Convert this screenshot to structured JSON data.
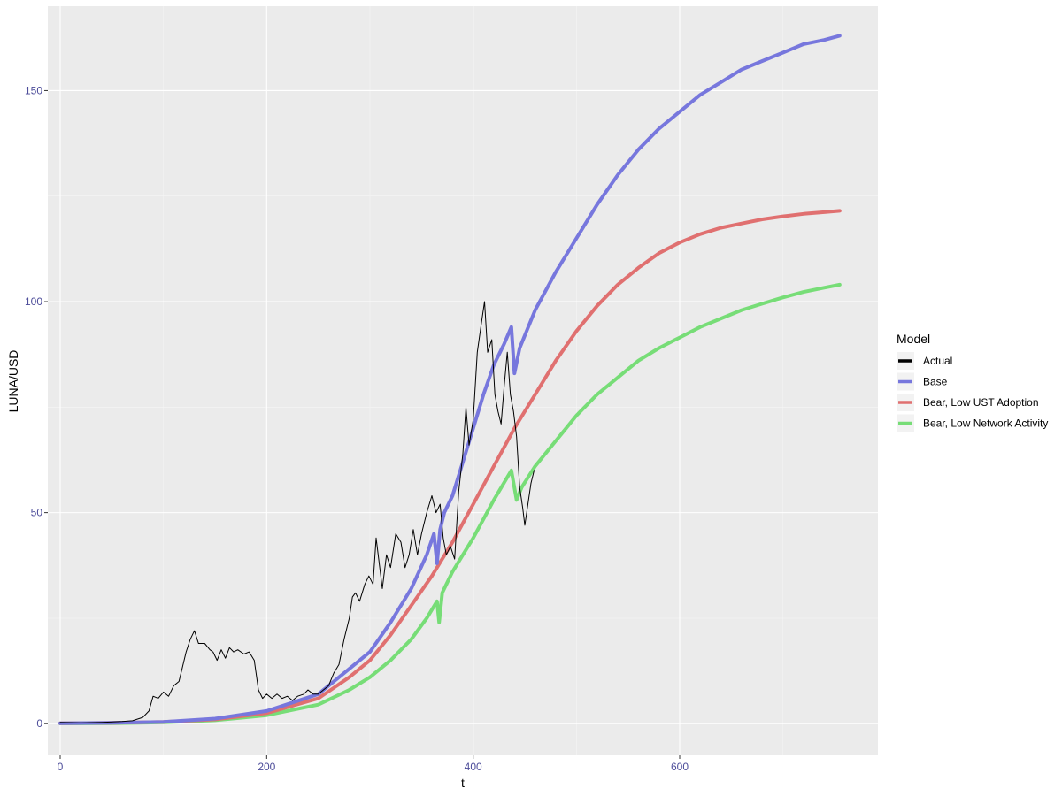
{
  "chart_data": {
    "type": "line",
    "title": "",
    "xlabel": "t",
    "ylabel": "LUNA/USD",
    "xlim": [
      -12,
      792
    ],
    "ylim": [
      -7.5,
      170
    ],
    "x_ticks": [
      0,
      200,
      400,
      600
    ],
    "x_tick_labels": [
      "0",
      "200",
      "400",
      "600"
    ],
    "y_ticks": [
      0,
      50,
      100,
      150
    ],
    "y_tick_labels": [
      "0",
      "50",
      "100",
      "150"
    ],
    "grid": true,
    "legend": {
      "title": "Model",
      "placement": "right"
    },
    "series": [
      {
        "name": "Actual",
        "color": "#000000",
        "linewidth": "thin",
        "points": [
          [
            0,
            0.3
          ],
          [
            20,
            0.2
          ],
          [
            40,
            0.3
          ],
          [
            60,
            0.5
          ],
          [
            70,
            0.7
          ],
          [
            80,
            1.5
          ],
          [
            86,
            3
          ],
          [
            90,
            6.5
          ],
          [
            95,
            6
          ],
          [
            100,
            7.5
          ],
          [
            105,
            6.5
          ],
          [
            110,
            9
          ],
          [
            115,
            10
          ],
          [
            118,
            13
          ],
          [
            122,
            17
          ],
          [
            126,
            20
          ],
          [
            130,
            22
          ],
          [
            134,
            19
          ],
          [
            140,
            19
          ],
          [
            145,
            17.5
          ],
          [
            148,
            17
          ],
          [
            152,
            15
          ],
          [
            156,
            17.5
          ],
          [
            160,
            15.5
          ],
          [
            164,
            18
          ],
          [
            168,
            17
          ],
          [
            172,
            17.5
          ],
          [
            178,
            16.5
          ],
          [
            183,
            17
          ],
          [
            188,
            15
          ],
          [
            192,
            8
          ],
          [
            196,
            6
          ],
          [
            200,
            7
          ],
          [
            205,
            6
          ],
          [
            210,
            7
          ],
          [
            215,
            6
          ],
          [
            220,
            6.5
          ],
          [
            225,
            5.5
          ],
          [
            230,
            6.5
          ],
          [
            236,
            7
          ],
          [
            240,
            8
          ],
          [
            245,
            7
          ],
          [
            250,
            7
          ],
          [
            255,
            8
          ],
          [
            260,
            9
          ],
          [
            265,
            12
          ],
          [
            270,
            14
          ],
          [
            275,
            20
          ],
          [
            280,
            25
          ],
          [
            283,
            30
          ],
          [
            286,
            31
          ],
          [
            290,
            29
          ],
          [
            295,
            33
          ],
          [
            299,
            35
          ],
          [
            303,
            33
          ],
          [
            306,
            44
          ],
          [
            309,
            38
          ],
          [
            312,
            32
          ],
          [
            316,
            40
          ],
          [
            320,
            37
          ],
          [
            325,
            45
          ],
          [
            330,
            43
          ],
          [
            334,
            37
          ],
          [
            338,
            40
          ],
          [
            342,
            46
          ],
          [
            346,
            40
          ],
          [
            350,
            45
          ],
          [
            355,
            50
          ],
          [
            360,
            54
          ],
          [
            364,
            50
          ],
          [
            368,
            52
          ],
          [
            371,
            44
          ],
          [
            374,
            40
          ],
          [
            378,
            42
          ],
          [
            382,
            39
          ],
          [
            386,
            55
          ],
          [
            390,
            64
          ],
          [
            393,
            75
          ],
          [
            396,
            66
          ],
          [
            400,
            72
          ],
          [
            404,
            88
          ],
          [
            408,
            95
          ],
          [
            411,
            100
          ],
          [
            414,
            88
          ],
          [
            418,
            91
          ],
          [
            421,
            78
          ],
          [
            424,
            74
          ],
          [
            427,
            71
          ],
          [
            430,
            80
          ],
          [
            433,
            88
          ],
          [
            436,
            78
          ],
          [
            439,
            74
          ],
          [
            442,
            68
          ],
          [
            445,
            56
          ],
          [
            448,
            51
          ],
          [
            450,
            47
          ],
          [
            453,
            52
          ],
          [
            456,
            57
          ],
          [
            459,
            60
          ]
        ]
      },
      {
        "name": "Base",
        "color": "#7777dd",
        "linewidth": "thick",
        "points": [
          [
            0,
            0.1
          ],
          [
            50,
            0.2
          ],
          [
            100,
            0.4
          ],
          [
            150,
            1.2
          ],
          [
            200,
            3
          ],
          [
            250,
            7
          ],
          [
            280,
            13
          ],
          [
            300,
            17
          ],
          [
            320,
            24
          ],
          [
            340,
            32
          ],
          [
            355,
            40
          ],
          [
            362,
            45
          ],
          [
            365,
            38
          ],
          [
            368,
            46
          ],
          [
            372,
            50
          ],
          [
            380,
            54
          ],
          [
            390,
            62
          ],
          [
            400,
            70
          ],
          [
            410,
            78
          ],
          [
            420,
            85
          ],
          [
            430,
            90
          ],
          [
            437,
            94
          ],
          [
            440,
            83
          ],
          [
            445,
            89
          ],
          [
            460,
            98
          ],
          [
            480,
            107
          ],
          [
            500,
            115
          ],
          [
            520,
            123
          ],
          [
            540,
            130
          ],
          [
            560,
            136
          ],
          [
            580,
            141
          ],
          [
            600,
            145
          ],
          [
            620,
            149
          ],
          [
            640,
            152
          ],
          [
            660,
            155
          ],
          [
            680,
            157
          ],
          [
            700,
            159
          ],
          [
            720,
            161
          ],
          [
            740,
            162
          ],
          [
            755,
            163
          ]
        ]
      },
      {
        "name": "Bear, Low UST Adoption",
        "color": "#e07070",
        "linewidth": "thick",
        "points": [
          [
            0,
            0.1
          ],
          [
            50,
            0.2
          ],
          [
            100,
            0.4
          ],
          [
            150,
            1
          ],
          [
            200,
            2.5
          ],
          [
            250,
            6
          ],
          [
            280,
            11
          ],
          [
            300,
            15
          ],
          [
            320,
            21
          ],
          [
            340,
            28
          ],
          [
            360,
            35
          ],
          [
            380,
            43
          ],
          [
            400,
            52
          ],
          [
            420,
            61
          ],
          [
            440,
            70
          ],
          [
            460,
            78
          ],
          [
            480,
            86
          ],
          [
            500,
            93
          ],
          [
            520,
            99
          ],
          [
            540,
            104
          ],
          [
            560,
            108
          ],
          [
            580,
            111.5
          ],
          [
            600,
            114
          ],
          [
            620,
            116
          ],
          [
            640,
            117.5
          ],
          [
            660,
            118.5
          ],
          [
            680,
            119.5
          ],
          [
            700,
            120.2
          ],
          [
            720,
            120.8
          ],
          [
            740,
            121.2
          ],
          [
            755,
            121.5
          ]
        ]
      },
      {
        "name": "Bear, Low Network Activity",
        "color": "#77dd77",
        "linewidth": "thick",
        "points": [
          [
            0,
            0.05
          ],
          [
            50,
            0.1
          ],
          [
            100,
            0.3
          ],
          [
            150,
            0.8
          ],
          [
            200,
            2
          ],
          [
            250,
            4.5
          ],
          [
            280,
            8
          ],
          [
            300,
            11
          ],
          [
            320,
            15
          ],
          [
            340,
            20
          ],
          [
            355,
            25
          ],
          [
            365,
            29
          ],
          [
            367,
            24
          ],
          [
            370,
            31
          ],
          [
            380,
            36
          ],
          [
            400,
            44
          ],
          [
            420,
            53
          ],
          [
            437,
            60
          ],
          [
            442,
            53
          ],
          [
            447,
            56
          ],
          [
            460,
            61
          ],
          [
            480,
            67
          ],
          [
            500,
            73
          ],
          [
            520,
            78
          ],
          [
            540,
            82
          ],
          [
            560,
            86
          ],
          [
            580,
            89
          ],
          [
            600,
            91.5
          ],
          [
            620,
            94
          ],
          [
            640,
            96
          ],
          [
            660,
            98
          ],
          [
            680,
            99.5
          ],
          [
            700,
            101
          ],
          [
            720,
            102.3
          ],
          [
            740,
            103.3
          ],
          [
            755,
            104
          ]
        ]
      }
    ]
  }
}
